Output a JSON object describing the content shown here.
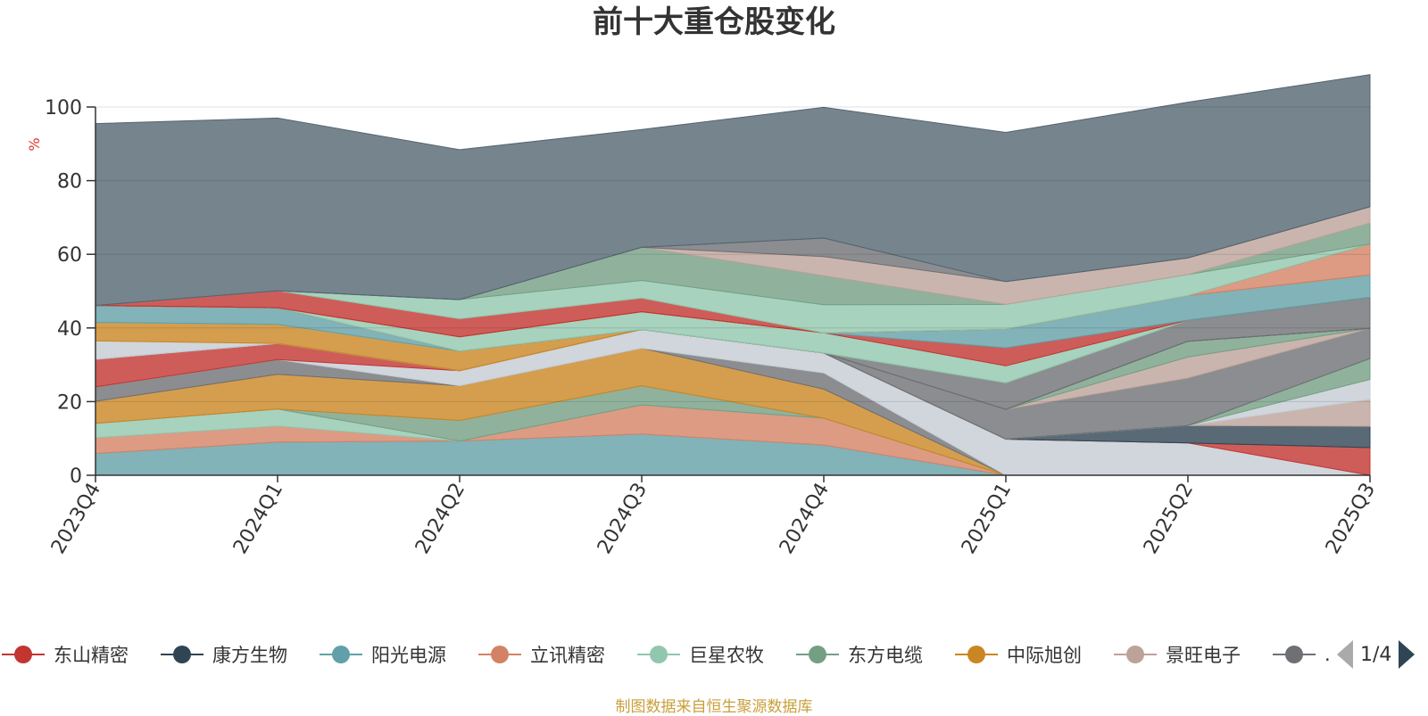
{
  "chart_data": {
    "type": "area",
    "title": "前十大重仓股变化",
    "ylabel": "%",
    "xlabel": "",
    "ylim": [
      0,
      100
    ],
    "yticks": [
      0,
      20,
      40,
      60,
      80,
      100
    ],
    "categories": [
      "2023Q4",
      "2024Q1",
      "2024Q2",
      "2024Q3",
      "2024Q4",
      "2025Q1",
      "2025Q2",
      "2025Q3"
    ],
    "stacked": true,
    "grid": true,
    "legend_position": "bottom",
    "series": [
      {
        "name": "阳光电源",
        "color": "#61a0a8",
        "values": [
          5.9,
          9.0,
          9.3,
          11.2,
          8.2,
          0,
          0,
          0
        ]
      },
      {
        "name": "立讯精密",
        "color": "#d48265",
        "values": [
          4.3,
          4.4,
          0,
          7.9,
          7.3,
          0,
          0,
          0
        ]
      },
      {
        "name": "巨星农牧",
        "color": "#91c7ae",
        "values": [
          3.9,
          4.6,
          0,
          0,
          0,
          0,
          0,
          0
        ]
      },
      {
        "name": "东方电缆",
        "color": "#749f83",
        "values": [
          0,
          0,
          5.6,
          5.2,
          0,
          0,
          0,
          0
        ]
      },
      {
        "name": "中际旭创",
        "color": "#ca8622",
        "values": [
          6.0,
          9.4,
          9.4,
          10.2,
          7.9,
          0,
          0,
          0
        ]
      },
      {
        "name": "",
        "color": "#6e7074",
        "values": [
          3.9,
          4.0,
          0,
          0,
          4.4,
          0,
          0,
          0
        ]
      },
      {
        "name": "",
        "color": "#c4ccd3",
        "values": [
          0,
          0,
          4.1,
          5.1,
          5.4,
          9.8,
          8.8,
          0
        ]
      },
      {
        "name": "东山精密",
        "color": "#c23531",
        "values": [
          7.5,
          4.4,
          0,
          0,
          0,
          0,
          0,
          7.5
        ]
      },
      {
        "name": "康方生物",
        "color": "#2f4554",
        "values": [
          0,
          0,
          0,
          0,
          0,
          0,
          4.7,
          5.8
        ]
      },
      {
        "name": "景旺电子",
        "color": "#bda29a",
        "values": [
          0,
          0,
          0,
          0,
          0,
          0,
          0,
          7.3
        ]
      },
      {
        "name": "",
        "color": "#c4ccd3",
        "values": [
          0,
          0,
          0,
          0,
          0,
          0,
          0,
          5.4
        ]
      },
      {
        "name": "",
        "color": "#749f83",
        "values": [
          0,
          0,
          0,
          0,
          0,
          0,
          0,
          5.7
        ]
      },
      {
        "name": "",
        "color": "#6e7074",
        "values": [
          0,
          0,
          0,
          0,
          0,
          8.1,
          12.9,
          8.2
        ]
      },
      {
        "name": "",
        "color": "#bda29a",
        "values": [
          0,
          0,
          0,
          0,
          0,
          0,
          5.7,
          0
        ]
      },
      {
        "name": "",
        "color": "#749f83",
        "values": [
          0,
          0,
          0,
          0,
          0,
          0,
          4.3,
          0
        ]
      },
      {
        "name": "",
        "color": "#bda29a",
        "values": [
          0,
          0,
          0,
          0,
          0,
          0,
          0,
          0
        ]
      },
      {
        "name": "",
        "color": "#c4ccd3",
        "values": [
          5.0,
          0,
          0,
          0,
          0,
          0,
          0,
          0
        ]
      },
      {
        "name": "",
        "color": "#ca8622",
        "values": [
          5.0,
          5.2,
          5.3,
          0,
          0,
          0,
          0,
          0
        ]
      },
      {
        "name": "",
        "color": "#91c7ae",
        "values": [
          0,
          0,
          0,
          0,
          0,
          0,
          0,
          0
        ]
      },
      {
        "name": "",
        "color": "#61a0a8",
        "values": [
          4.6,
          4.5,
          0,
          0,
          0,
          0,
          0,
          0
        ]
      },
      {
        "name": "",
        "color": "#d48265",
        "values": [
          0,
          0,
          0,
          0,
          0,
          0,
          0,
          0
        ]
      },
      {
        "name": "",
        "color": "#2f4554",
        "values": [
          0,
          0,
          0,
          0,
          0,
          0,
          0,
          0
        ]
      },
      {
        "name": "",
        "color": "#6e7074",
        "values": [
          0,
          0,
          0,
          0,
          0,
          7.2,
          5.7,
          8.4
        ]
      },
      {
        "name": "",
        "color": "#c23531",
        "values": [
          0,
          0,
          0,
          0,
          0,
          0,
          0,
          0
        ]
      },
      {
        "name": "",
        "color": "#749f83",
        "values": [
          0,
          0,
          0,
          0,
          0,
          0,
          0,
          0
        ]
      },
      {
        "name": "",
        "color": "#91c7ae",
        "values": [
          0,
          0,
          3.9,
          4.8,
          5.5,
          4.6,
          0,
          0
        ]
      },
      {
        "name": "",
        "color": "#c23531",
        "values": [
          0,
          0,
          0,
          0,
          0,
          4.9,
          0,
          0
        ]
      },
      {
        "name": "",
        "color": "#61a0a8",
        "values": [
          0,
          0,
          0,
          0,
          0,
          5.1,
          6.7,
          6.1
        ]
      },
      {
        "name": "",
        "color": "#ca8622",
        "values": [
          0,
          0,
          0,
          0,
          0,
          0,
          0,
          0
        ]
      },
      {
        "name": "",
        "color": "#d48265",
        "values": [
          0,
          0,
          0,
          0,
          0,
          0,
          0,
          8.4
        ]
      },
      {
        "name": "",
        "color": "#c23531",
        "values": [
          0,
          4.6,
          4.9,
          3.7,
          0,
          0,
          0,
          0
        ]
      },
      {
        "name": "",
        "color": "#91c7ae",
        "values": [
          0,
          0,
          5.2,
          4.8,
          7.6,
          6.7,
          5.7,
          0
        ]
      },
      {
        "name": "",
        "color": "#749f83",
        "values": [
          0,
          0,
          0,
          9.0,
          7.9,
          0,
          0,
          5.7
        ]
      },
      {
        "name": "",
        "color": "#bda29a",
        "values": [
          0,
          0,
          0,
          0,
          5.2,
          6.2,
          4.5,
          4.4
        ]
      },
      {
        "name": "",
        "color": "#6e7074",
        "values": [
          0,
          0,
          0,
          0,
          5.0,
          0,
          0,
          0
        ]
      },
      {
        "name": "",
        "color": "#546570",
        "values": [
          49.4,
          46.9,
          40.7,
          32.0,
          35.5,
          40.5,
          42.3,
          35.9
        ]
      }
    ]
  },
  "legend": {
    "items": [
      {
        "label": "东山精密",
        "color": "#c23531"
      },
      {
        "label": "康方生物",
        "color": "#2f4554"
      },
      {
        "label": "阳光电源",
        "color": "#61a0a8"
      },
      {
        "label": "立讯精密",
        "color": "#d48265"
      },
      {
        "label": "巨星农牧",
        "color": "#91c7ae"
      },
      {
        "label": "东方电缆",
        "color": "#749f83"
      },
      {
        "label": "中际旭创",
        "color": "#ca8622"
      },
      {
        "label": "景旺电子",
        "color": "#bda29a"
      },
      {
        "label": ".",
        "color": "#6e7074"
      }
    ],
    "page": "1/4"
  },
  "footer": "制图数据来自恒生聚源数据库"
}
